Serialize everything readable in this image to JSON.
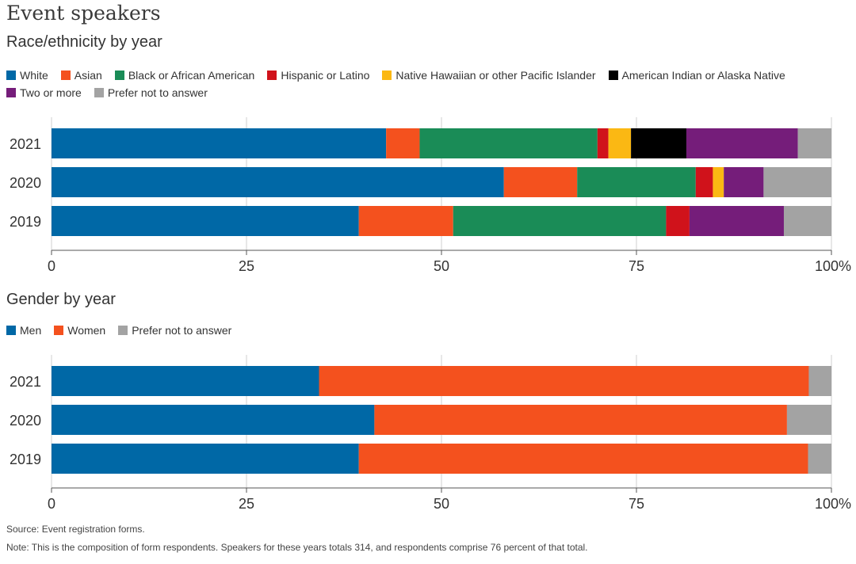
{
  "title": "Event speakers",
  "race_legend": [
    {
      "label": "White",
      "color": "#0068a6"
    },
    {
      "label": "Asian",
      "color": "#f4511e"
    },
    {
      "label": "Black or African American",
      "color": "#1a8c57"
    },
    {
      "label": "Hispanic or Latino",
      "color": "#d0121b"
    },
    {
      "label": "Native Hawaiian or other Pacific Islander",
      "color": "#fbb813"
    },
    {
      "label": "American Indian or Alaska Native",
      "color": "#000000"
    },
    {
      "label": "Two or more",
      "color": "#751d7a"
    },
    {
      "label": "Prefer not to answer",
      "color": "#a3a3a3"
    }
  ],
  "gender_legend": [
    {
      "label": "Men",
      "color": "#0068a6"
    },
    {
      "label": "Women",
      "color": "#f4511e"
    },
    {
      "label": "Prefer not to answer",
      "color": "#a3a3a3"
    }
  ],
  "source": "Source:  Event registration forms.",
  "note": "Note: This is the composition of form respondents. Speakers for these years totals 314, and respondents comprise 76 percent of that total.",
  "chart_data": [
    {
      "type": "bar",
      "stacked": true,
      "orientation": "horizontal",
      "title": "Race/ethnicity by year",
      "categories": [
        "2021",
        "2020",
        "2019"
      ],
      "xlim": [
        0,
        100
      ],
      "xticks": [
        "0",
        "25",
        "50",
        "75",
        "100%"
      ],
      "grid": true,
      "legend_position": "top-left",
      "series": [
        {
          "name": "White",
          "color": "#0068a6",
          "values": [
            42.9,
            58.0,
            39.4
          ]
        },
        {
          "name": "Asian",
          "color": "#f4511e",
          "values": [
            4.3,
            9.4,
            12.1
          ]
        },
        {
          "name": "Black or African American",
          "color": "#1a8c57",
          "values": [
            22.8,
            15.2,
            27.3
          ]
        },
        {
          "name": "Hispanic or Latino",
          "color": "#d0121b",
          "values": [
            1.4,
            2.2,
            3.0
          ]
        },
        {
          "name": "Native Hawaiian or other Pacific Islander",
          "color": "#fbb813",
          "values": [
            2.9,
            1.4,
            0.0
          ]
        },
        {
          "name": "American Indian or Alaska Native",
          "color": "#000000",
          "values": [
            7.1,
            0.0,
            0.0
          ]
        },
        {
          "name": "Two or more",
          "color": "#751d7a",
          "values": [
            14.3,
            5.1,
            12.1
          ]
        },
        {
          "name": "Prefer not to answer",
          "color": "#a3a3a3",
          "values": [
            4.3,
            8.7,
            6.1
          ]
        }
      ]
    },
    {
      "type": "bar",
      "stacked": true,
      "orientation": "horizontal",
      "title": "Gender by year",
      "categories": [
        "2021",
        "2020",
        "2019"
      ],
      "xlim": [
        0,
        100
      ],
      "xticks": [
        "0",
        "25",
        "50",
        "75",
        "100%"
      ],
      "grid": true,
      "legend_position": "top-left",
      "series": [
        {
          "name": "Men",
          "color": "#0068a6",
          "values": [
            34.3,
            41.4,
            39.4
          ]
        },
        {
          "name": "Women",
          "color": "#f4511e",
          "values": [
            62.8,
            52.9,
            57.6
          ]
        },
        {
          "name": "Prefer not to answer",
          "color": "#a3a3a3",
          "values": [
            2.9,
            5.7,
            3.0
          ]
        }
      ]
    }
  ]
}
